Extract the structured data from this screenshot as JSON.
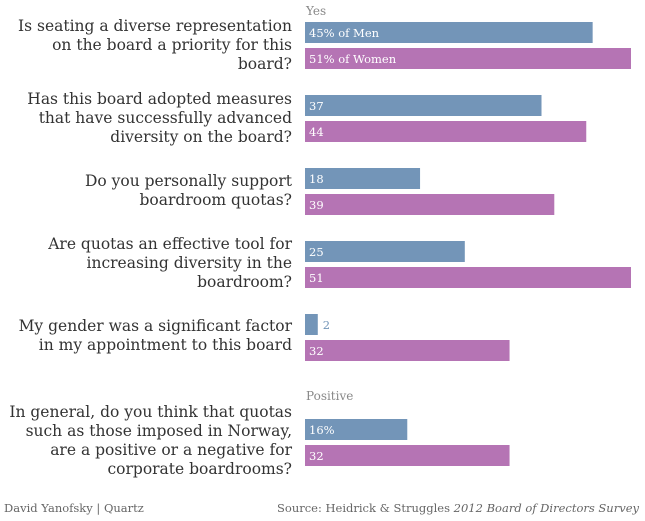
{
  "chart_data": {
    "type": "bar",
    "orientation": "horizontal",
    "xlim": [
      0,
      51
    ],
    "section_headers": [
      "Yes",
      "Positive"
    ],
    "series": [
      {
        "name": "Men",
        "color": "#7395b8"
      },
      {
        "name": "Women",
        "color": "#b574b4"
      }
    ],
    "questions": [
      {
        "label": "Is seating a diverse representation on the board a priority for this board?",
        "men": 45,
        "women": 51,
        "men_label": "45% of Men",
        "women_label": "51% of Women"
      },
      {
        "label": "Has this board adopted measures that have successfully advanced diversity on the board?",
        "men": 37,
        "women": 44,
        "men_label": "37",
        "women_label": "44"
      },
      {
        "label": "Do you personally support boardroom quotas?",
        "men": 18,
        "women": 39,
        "men_label": "18",
        "women_label": "39"
      },
      {
        "label": "Are quotas an effective tool for increasing diversity in the boardroom?",
        "men": 25,
        "women": 51,
        "men_label": "25",
        "women_label": "51"
      },
      {
        "label": "My gender was a significant factor in my appointment to this board",
        "men": 2,
        "women": 32,
        "men_label": "2",
        "women_label": "32"
      },
      {
        "label": "In general, do you think that quotas such as those imposed in Norway, are a positive or a negative for corporate boardrooms?",
        "men": 16,
        "women": 32,
        "men_label": "16%",
        "women_label": "32"
      }
    ]
  },
  "footer": {
    "credit": "David Yanofsky | Quartz",
    "source_prefix": "Source: Heidrick & Struggles ",
    "source_title": "2012 Board of Directors Survey"
  }
}
